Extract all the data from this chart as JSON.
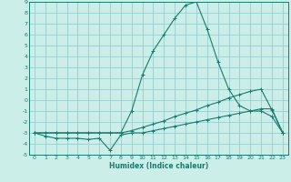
{
  "title": "",
  "xlabel": "Humidex (Indice chaleur)",
  "ylabel": "",
  "bg_color": "#cceee8",
  "grid_color": "#99cccc",
  "line_color": "#1a7a6e",
  "xlim": [
    -0.5,
    23.5
  ],
  "ylim": [
    -5,
    9
  ],
  "xticks": [
    0,
    1,
    2,
    3,
    4,
    5,
    6,
    7,
    8,
    9,
    10,
    11,
    12,
    13,
    14,
    15,
    16,
    17,
    18,
    19,
    20,
    21,
    22,
    23
  ],
  "yticks": [
    -5,
    -4,
    -3,
    -2,
    -1,
    0,
    1,
    2,
    3,
    4,
    5,
    6,
    7,
    8,
    9
  ],
  "line1_x": [
    0,
    1,
    2,
    3,
    4,
    5,
    6,
    7,
    8,
    9,
    10,
    11,
    12,
    13,
    14,
    15,
    16,
    17,
    18,
    19,
    20,
    21,
    22,
    23
  ],
  "line1_y": [
    -3.0,
    -3.3,
    -3.5,
    -3.5,
    -3.5,
    -3.6,
    -3.5,
    -4.6,
    -3.2,
    -3.0,
    -3.0,
    -2.8,
    -2.6,
    -2.4,
    -2.2,
    -2.0,
    -1.8,
    -1.6,
    -1.4,
    -1.2,
    -1.0,
    -0.8,
    -0.8,
    -3.0
  ],
  "line2_x": [
    0,
    1,
    2,
    3,
    4,
    5,
    6,
    7,
    8,
    9,
    10,
    11,
    12,
    13,
    14,
    15,
    16,
    17,
    18,
    19,
    20,
    21,
    22,
    23
  ],
  "line2_y": [
    -3.0,
    -3.0,
    -3.0,
    -3.0,
    -3.0,
    -3.0,
    -3.0,
    -3.0,
    -3.0,
    -1.0,
    2.3,
    4.5,
    6.0,
    7.5,
    8.7,
    9.0,
    6.5,
    3.5,
    1.0,
    -0.5,
    -1.0,
    -1.0,
    -1.5,
    -3.0
  ],
  "line3_x": [
    0,
    1,
    2,
    3,
    4,
    5,
    6,
    7,
    8,
    9,
    10,
    11,
    12,
    13,
    14,
    15,
    16,
    17,
    18,
    19,
    20,
    21,
    22,
    23
  ],
  "line3_y": [
    -3.0,
    -3.0,
    -3.0,
    -3.0,
    -3.0,
    -3.0,
    -3.0,
    -3.0,
    -3.0,
    -2.8,
    -2.5,
    -2.2,
    -1.9,
    -1.5,
    -1.2,
    -0.9,
    -0.5,
    -0.2,
    0.2,
    0.5,
    0.8,
    1.0,
    -0.9,
    -3.0
  ]
}
